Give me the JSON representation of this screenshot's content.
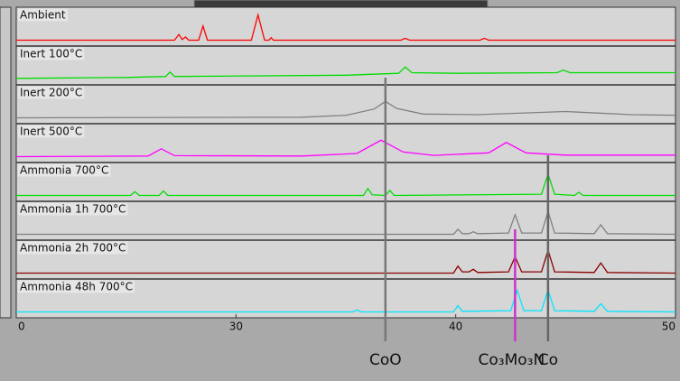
{
  "chart_data": {
    "type": "line",
    "ylim": [
      0,
      100
    ],
    "xlim": [
      20,
      50
    ],
    "xticks": [
      {
        "value": 20,
        "label": "0"
      },
      30,
      40,
      50
    ],
    "series": [
      {
        "name": "Ambient",
        "color": "#ff0000",
        "x": [
          20,
          27.2,
          27.4,
          27.55,
          27.7,
          27.85,
          28.3,
          28.5,
          28.7,
          30.7,
          31.0,
          31.3,
          31.5,
          31.6,
          31.7,
          37.5,
          37.7,
          37.9,
          41.1,
          41.3,
          41.5,
          50
        ],
        "values": [
          10,
          10,
          28,
          12,
          20,
          10,
          10,
          55,
          10,
          10,
          90,
          10,
          10,
          18,
          10,
          10,
          16,
          10,
          10,
          16,
          10,
          10
        ]
      },
      {
        "name": "Inert 100°C",
        "color": "#00dd00",
        "x": [
          20,
          25,
          26.8,
          27.0,
          27.2,
          35,
          37.4,
          37.7,
          38.0,
          40,
          44.6,
          44.9,
          45.2,
          50
        ],
        "values": [
          12,
          15,
          18,
          32,
          18,
          22,
          28,
          48,
          30,
          28,
          30,
          38,
          30,
          30
        ]
      },
      {
        "name": "Inert 200°C",
        "color": "#808080",
        "x": [
          20,
          33,
          35,
          36.3,
          36.8,
          37.3,
          38.5,
          41,
          45,
          48,
          50
        ],
        "values": [
          10,
          12,
          18,
          38,
          62,
          40,
          22,
          20,
          30,
          20,
          18
        ]
      },
      {
        "name": "Inert 500°C",
        "color": "#ff00ff",
        "x": [
          20,
          26,
          26.6,
          27.2,
          33,
          35.5,
          36.6,
          37.6,
          39,
          41.5,
          42.3,
          43.2,
          45,
          50
        ],
        "values": [
          10,
          12,
          35,
          13,
          12,
          20,
          62,
          25,
          14,
          22,
          55,
          22,
          15,
          15
        ]
      },
      {
        "name": "Ammonia 700°C",
        "color": "#00dd00",
        "x": [
          20,
          25.2,
          25.4,
          25.6,
          26.5,
          26.7,
          26.9,
          35.8,
          36.0,
          36.2,
          36.8,
          37.0,
          37.2,
          43.9,
          44.2,
          44.5,
          45.4,
          45.6,
          45.8,
          50
        ],
        "values": [
          10,
          10,
          22,
          10,
          10,
          24,
          10,
          10,
          32,
          12,
          10,
          26,
          10,
          14,
          78,
          14,
          10,
          20,
          10,
          10
        ]
      },
      {
        "name": "Ammonia 1h 700°C",
        "color": "#808080",
        "x": [
          20,
          39.9,
          40.1,
          40.3,
          40.6,
          40.8,
          41,
          42.4,
          42.7,
          43,
          43.9,
          44.2,
          44.5,
          46.3,
          46.6,
          46.9,
          50
        ],
        "values": [
          10,
          10,
          26,
          12,
          12,
          18,
          12,
          14,
          72,
          14,
          14,
          82,
          14,
          12,
          40,
          12,
          10
        ]
      },
      {
        "name": "Ammonia 2h 700°C",
        "color": "#8b0000",
        "x": [
          20,
          39.9,
          40.1,
          40.3,
          40.6,
          40.8,
          41,
          42.4,
          42.7,
          43,
          43.9,
          44.2,
          44.5,
          46.3,
          46.6,
          46.9,
          50
        ],
        "values": [
          10,
          10,
          32,
          14,
          14,
          22,
          12,
          14,
          62,
          14,
          14,
          82,
          14,
          12,
          42,
          12,
          10
        ]
      },
      {
        "name": "Ammonia 48h 700°C",
        "color": "#00e5ff",
        "x": [
          20,
          35.3,
          35.5,
          35.7,
          39.9,
          40.1,
          40.3,
          42.5,
          42.8,
          43.1,
          43.9,
          44.2,
          44.5,
          46.3,
          46.6,
          46.9,
          50
        ],
        "values": [
          10,
          10,
          16,
          10,
          10,
          30,
          12,
          14,
          78,
          14,
          14,
          80,
          14,
          12,
          36,
          12,
          10
        ]
      }
    ],
    "reference_lines": [
      {
        "label": "CoO",
        "x": 36.8,
        "color": "#777777"
      },
      {
        "label": "Co₃Mo₃N",
        "x": 42.7,
        "color": "#cc33cc"
      },
      {
        "label": "Co",
        "x": 44.2,
        "color": "#666666"
      }
    ]
  }
}
